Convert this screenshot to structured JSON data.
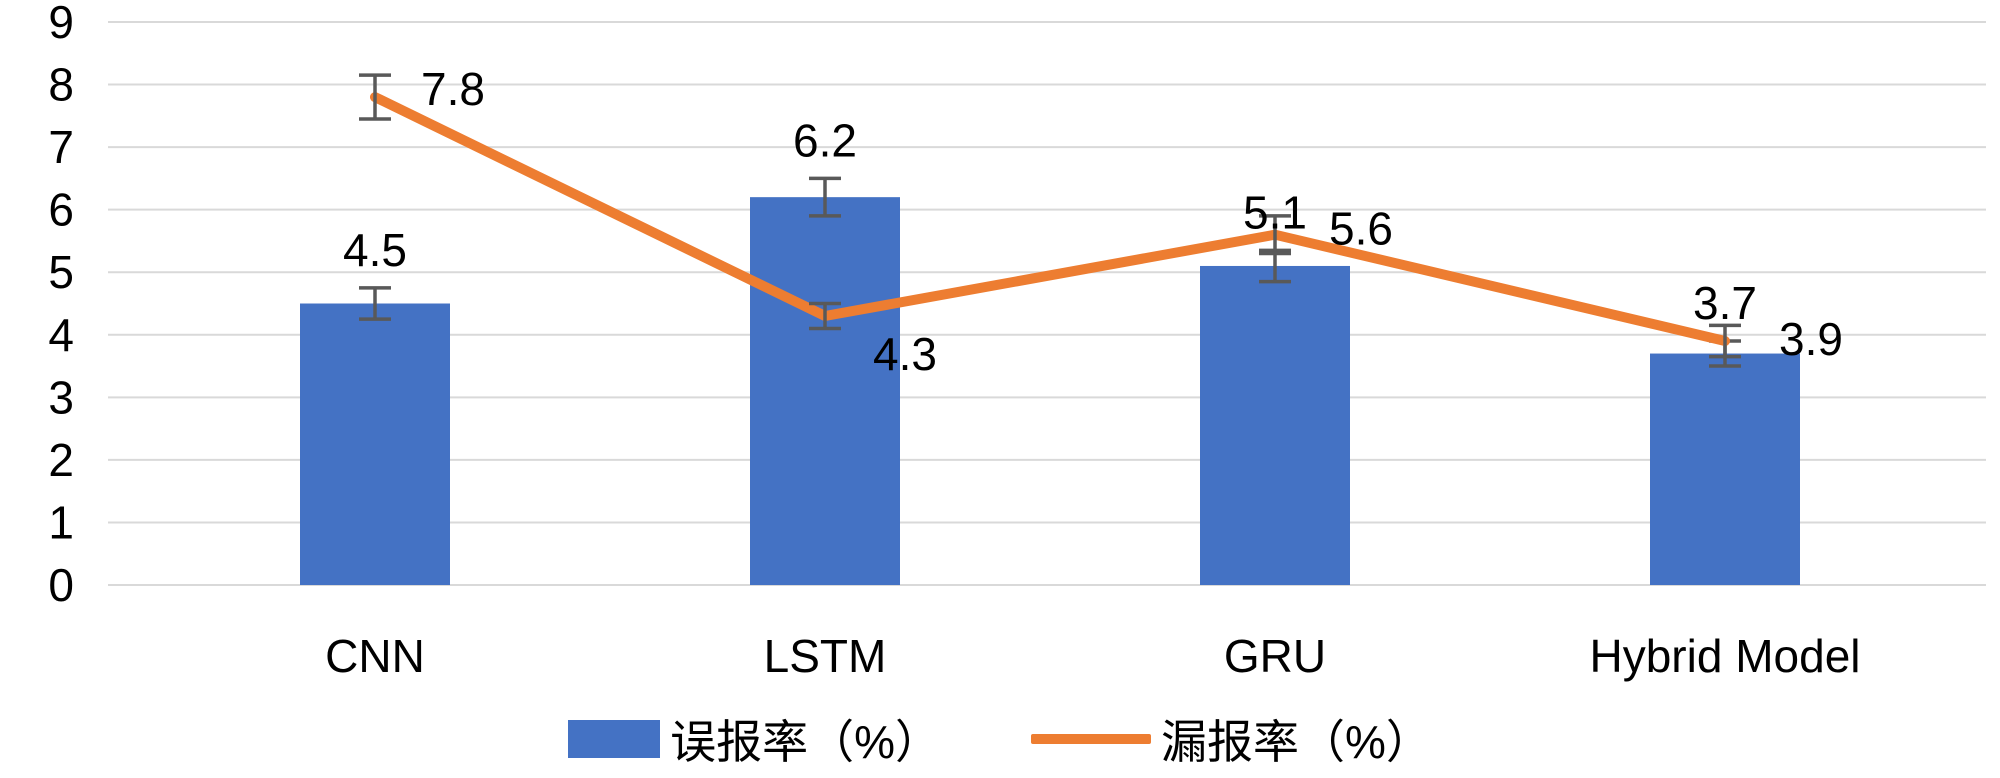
{
  "chart_data": {
    "type": "combo",
    "title": "",
    "categories": [
      "CNN",
      "LSTM",
      "GRU",
      "Hybrid Model"
    ],
    "series": [
      {
        "name": "误报率（%）",
        "type": "bar",
        "color": "#4472c4",
        "values": [
          4.5,
          6.2,
          5.1,
          3.7
        ],
        "errors": [
          0.25,
          0.3,
          0.25,
          0.2
        ],
        "data_labels": [
          "4.5",
          "6.2",
          "5.1",
          "3.7"
        ]
      },
      {
        "name": "漏报率（%）",
        "type": "line",
        "color": "#ed7d31",
        "values": [
          7.8,
          4.3,
          5.6,
          3.9
        ],
        "errors": [
          0.35,
          0.2,
          0.3,
          0.25
        ],
        "data_labels": [
          "7.8",
          "4.3",
          "5.6",
          "3.9"
        ]
      }
    ],
    "yticks": [
      0,
      1,
      2,
      3,
      4,
      5,
      6,
      7,
      8,
      9
    ],
    "ylim": [
      0,
      9
    ],
    "xlabel": "",
    "ylabel": "",
    "grid": true,
    "legend_position": "bottom",
    "gridline_color": "#d9d9d9",
    "error_bar_color": "#595959",
    "text_color": "#000000"
  }
}
